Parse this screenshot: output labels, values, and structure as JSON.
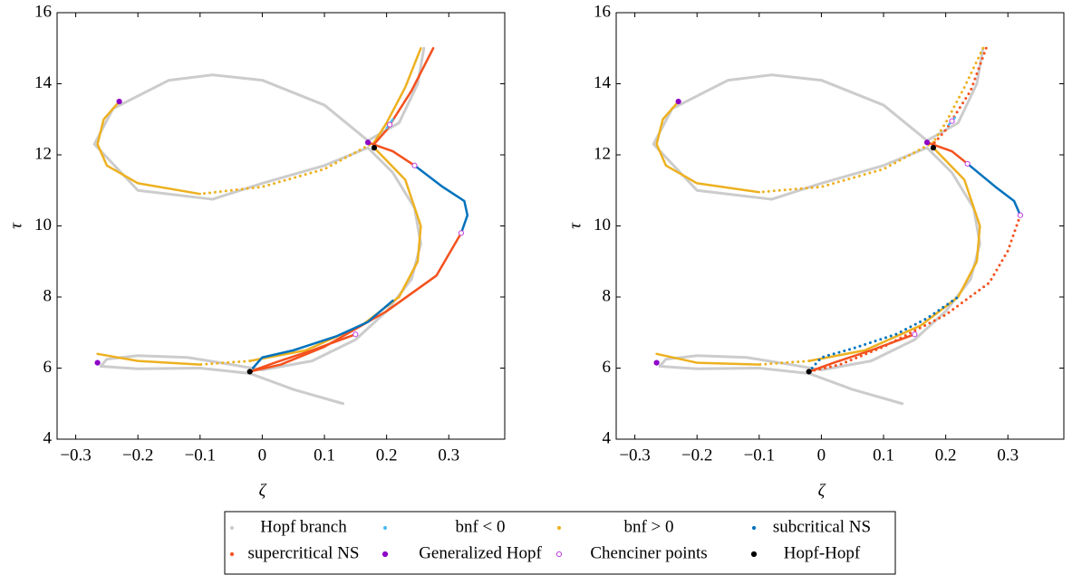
{
  "chart_data": [
    {
      "type": "line",
      "xlabel": "ζ",
      "ylabel": "τ",
      "xlim": [
        -0.33,
        0.39
      ],
      "ylim": [
        4,
        16
      ],
      "xticks": [
        {
          "value": -0.3,
          "label": "−0.3"
        },
        {
          "value": -0.2,
          "label": "−0.2"
        },
        {
          "value": -0.1,
          "label": "−0.1"
        },
        0,
        0.1,
        0.2,
        0.3
      ],
      "yticks": [
        4,
        6,
        8,
        10,
        12,
        14,
        16
      ],
      "series": [
        {
          "style": "line",
          "color": "#cccccc",
          "x": [
            0.13,
            0.05,
            -0.02,
            -0.1,
            -0.2,
            -0.26,
            -0.25,
            -0.2,
            -0.12,
            -0.05,
            0.0,
            0.08,
            0.15,
            0.2,
            0.24,
            0.255,
            0.245,
            0.21,
            0.17,
            0.1,
            0.0,
            -0.08,
            -0.2,
            -0.27,
            -0.24,
            -0.15,
            -0.08,
            0.0,
            0.1,
            0.17,
            0.22,
            0.25,
            0.26
          ],
          "values": [
            5.0,
            5.4,
            5.85,
            6.0,
            5.98,
            6.05,
            6.25,
            6.35,
            6.3,
            6.1,
            5.95,
            6.2,
            6.8,
            7.6,
            8.5,
            9.5,
            10.5,
            11.5,
            12.2,
            11.7,
            11.2,
            10.75,
            11.0,
            12.3,
            13.3,
            14.1,
            14.25,
            14.1,
            13.4,
            12.4,
            12.9,
            14.0,
            15.0
          ]
        },
        {
          "style": "line",
          "color": "#edb120",
          "x": [
            0.255,
            0.23,
            0.2,
            0.18
          ],
          "values": [
            15.0,
            13.9,
            12.9,
            12.35
          ]
        },
        {
          "style": "dots",
          "color": "#edb120",
          "x": [
            0.18,
            0.1,
            0.0,
            -0.1
          ],
          "values": [
            12.35,
            11.6,
            11.1,
            10.9
          ]
        },
        {
          "style": "line",
          "color": "#edb120",
          "x": [
            -0.1,
            -0.2,
            -0.25,
            -0.265,
            -0.255,
            -0.23
          ],
          "values": [
            10.9,
            11.2,
            11.7,
            12.3,
            13.0,
            13.5
          ]
        },
        {
          "style": "line",
          "color": "#edb120",
          "x": [
            0.18,
            0.23,
            0.255,
            0.25,
            0.22,
            0.16,
            0.07,
            -0.02
          ],
          "values": [
            12.2,
            11.3,
            10.0,
            9.0,
            8.0,
            7.2,
            6.5,
            6.2
          ]
        },
        {
          "style": "dots",
          "color": "#edb120",
          "x": [
            -0.02,
            -0.1
          ],
          "values": [
            6.2,
            6.1
          ]
        },
        {
          "style": "line",
          "color": "#edb120",
          "x": [
            -0.1,
            -0.2,
            -0.265
          ],
          "values": [
            6.1,
            6.2,
            6.4
          ]
        },
        {
          "style": "line",
          "color": "#f4511e",
          "x": [
            0.275,
            0.24,
            0.2,
            0.18
          ],
          "values": [
            15.0,
            13.8,
            12.7,
            12.3
          ]
        },
        {
          "style": "line",
          "color": "#f4511e",
          "x": [
            0.17,
            0.21,
            0.245
          ],
          "values": [
            12.35,
            12.1,
            11.7
          ]
        },
        {
          "style": "line",
          "color": "#f4511e",
          "x": [
            0.32,
            0.28,
            0.2,
            0.1,
            0.03,
            -0.02
          ],
          "values": [
            9.8,
            8.6,
            7.6,
            6.6,
            6.1,
            5.9
          ]
        },
        {
          "style": "line",
          "color": "#f4511e",
          "x": [
            0.15,
            0.08,
            0.02,
            -0.02
          ],
          "values": [
            6.95,
            6.5,
            6.15,
            5.9
          ]
        },
        {
          "style": "line",
          "color": "#0072bd",
          "x": [
            0.245,
            0.29,
            0.325,
            0.33,
            0.32
          ],
          "values": [
            11.7,
            11.1,
            10.7,
            10.3,
            9.8
          ]
        },
        {
          "style": "line",
          "color": "#0072bd",
          "x": [
            -0.015,
            0.0,
            0.05,
            0.12,
            0.17,
            0.21
          ],
          "values": [
            6.0,
            6.3,
            6.5,
            6.9,
            7.3,
            7.9
          ]
        },
        {
          "style": "line",
          "color": "#4dbeee",
          "x": [
            0.2,
            0.21
          ],
          "values": [
            12.75,
            13.0
          ]
        },
        {
          "style": "filled",
          "color": "#8e00c8",
          "x": [
            -0.23,
            0.17,
            -0.265
          ],
          "values": [
            13.5,
            12.35,
            6.15
          ]
        },
        {
          "style": "hollow",
          "color": "#c040e0",
          "x": [
            0.205,
            0.245,
            0.32,
            0.15
          ],
          "values": [
            12.85,
            11.7,
            9.8,
            6.95
          ]
        },
        {
          "style": "filled",
          "color": "#000000",
          "x": [
            0.18,
            -0.02
          ],
          "values": [
            12.2,
            5.9
          ]
        }
      ]
    },
    {
      "type": "line",
      "xlabel": "ζ",
      "ylabel": "τ",
      "xlim": [
        -0.33,
        0.39
      ],
      "ylim": [
        4,
        16
      ],
      "xticks": [
        {
          "value": -0.3,
          "label": "−0.3"
        },
        {
          "value": -0.2,
          "label": "−0.2"
        },
        {
          "value": -0.1,
          "label": "−0.1"
        },
        0,
        0.1,
        0.2,
        0.3
      ],
      "yticks": [
        4,
        6,
        8,
        10,
        12,
        14,
        16
      ],
      "series": [
        {
          "style": "line",
          "color": "#cccccc",
          "x": [
            0.13,
            0.05,
            -0.02,
            -0.1,
            -0.2,
            -0.26,
            -0.25,
            -0.2,
            -0.12,
            -0.05,
            0.0,
            0.08,
            0.15,
            0.2,
            0.24,
            0.255,
            0.245,
            0.21,
            0.17,
            0.1,
            0.0,
            -0.08,
            -0.2,
            -0.27,
            -0.24,
            -0.15,
            -0.08,
            0.0,
            0.1,
            0.17,
            0.22,
            0.25,
            0.26
          ],
          "values": [
            5.0,
            5.4,
            5.85,
            6.0,
            5.98,
            6.05,
            6.25,
            6.35,
            6.3,
            6.1,
            5.95,
            6.2,
            6.8,
            7.6,
            8.5,
            9.5,
            10.5,
            11.5,
            12.2,
            11.7,
            11.2,
            10.75,
            11.0,
            12.3,
            13.3,
            14.1,
            14.25,
            14.1,
            13.4,
            12.4,
            12.9,
            14.0,
            15.0
          ]
        },
        {
          "style": "dots",
          "color": "#edb120",
          "x": [
            0.26,
            0.23,
            0.2,
            0.18
          ],
          "values": [
            15.0,
            13.9,
            12.9,
            12.35
          ]
        },
        {
          "style": "dots",
          "color": "#edb120",
          "x": [
            0.18,
            0.1,
            0.0,
            -0.1
          ],
          "values": [
            12.35,
            11.6,
            11.1,
            10.95
          ]
        },
        {
          "style": "line",
          "color": "#edb120",
          "x": [
            -0.1,
            -0.2,
            -0.25,
            -0.265,
            -0.255,
            -0.23
          ],
          "values": [
            10.95,
            11.2,
            11.7,
            12.3,
            13.0,
            13.5
          ]
        },
        {
          "style": "line",
          "color": "#edb120",
          "x": [
            0.18,
            0.23,
            0.255,
            0.25,
            0.22,
            0.16,
            0.07,
            -0.02
          ],
          "values": [
            12.2,
            11.3,
            10.0,
            9.0,
            8.0,
            7.2,
            6.5,
            6.2
          ]
        },
        {
          "style": "dots",
          "color": "#edb120",
          "x": [
            -0.02,
            -0.1
          ],
          "values": [
            6.2,
            6.1
          ]
        },
        {
          "style": "line",
          "color": "#edb120",
          "x": [
            -0.1,
            -0.2,
            -0.265
          ],
          "values": [
            6.1,
            6.15,
            6.4
          ]
        },
        {
          "style": "dots",
          "color": "#f4511e",
          "x": [
            0.265,
            0.24,
            0.2,
            0.18
          ],
          "values": [
            15.0,
            13.8,
            12.7,
            12.3
          ]
        },
        {
          "style": "line",
          "color": "#f4511e",
          "x": [
            0.17,
            0.21,
            0.235
          ],
          "values": [
            12.35,
            12.1,
            11.75
          ]
        },
        {
          "style": "dots",
          "color": "#f4511e",
          "x": [
            0.32,
            0.3,
            0.27,
            0.2,
            0.1,
            0.03,
            -0.02
          ],
          "values": [
            10.3,
            9.3,
            8.4,
            7.5,
            6.6,
            6.1,
            5.9
          ]
        },
        {
          "style": "line",
          "color": "#f4511e",
          "x": [
            0.15,
            0.08,
            0.02,
            -0.02
          ],
          "values": [
            6.95,
            6.5,
            6.15,
            5.9
          ]
        },
        {
          "style": "line",
          "color": "#0072bd",
          "x": [
            0.235,
            0.28,
            0.31,
            0.32
          ],
          "values": [
            11.75,
            11.1,
            10.7,
            10.3
          ]
        },
        {
          "style": "dots",
          "color": "#0072bd",
          "x": [
            -0.015,
            0.0,
            0.05,
            0.12,
            0.17,
            0.22
          ],
          "values": [
            6.0,
            6.3,
            6.55,
            6.95,
            7.4,
            8.0
          ]
        },
        {
          "style": "line",
          "color": "#4dbeee",
          "x": [
            0.205,
            0.215
          ],
          "values": [
            12.85,
            13.05
          ]
        },
        {
          "style": "filled",
          "color": "#8e00c8",
          "x": [
            -0.23,
            0.17,
            -0.265
          ],
          "values": [
            13.5,
            12.35,
            6.15
          ]
        },
        {
          "style": "hollow",
          "color": "#c040e0",
          "x": [
            0.21,
            0.235,
            0.32,
            0.15
          ],
          "values": [
            12.95,
            11.75,
            10.3,
            6.95
          ]
        },
        {
          "style": "filled",
          "color": "#000000",
          "x": [
            0.18,
            -0.02
          ],
          "values": [
            12.2,
            5.9
          ]
        }
      ]
    }
  ],
  "legend": [
    {
      "name": "Hopf branch",
      "color": "#cccccc",
      "marker": "dot"
    },
    {
      "name": "bnf < 0",
      "color": "#4dbeee",
      "marker": "dot"
    },
    {
      "name": "bnf > 0",
      "color": "#edb120",
      "marker": "dot"
    },
    {
      "name": "subcritical NS",
      "color": "#0072bd",
      "marker": "dot"
    },
    {
      "name": "supercritical NS",
      "color": "#f4511e",
      "marker": "dot"
    },
    {
      "name": "Generalized Hopf",
      "color": "#8e00c8",
      "marker": "filled"
    },
    {
      "name": "Chenciner points",
      "color": "#c040e0",
      "marker": "hollow"
    },
    {
      "name": "Hopf-Hopf",
      "color": "#000000",
      "marker": "filled"
    }
  ]
}
